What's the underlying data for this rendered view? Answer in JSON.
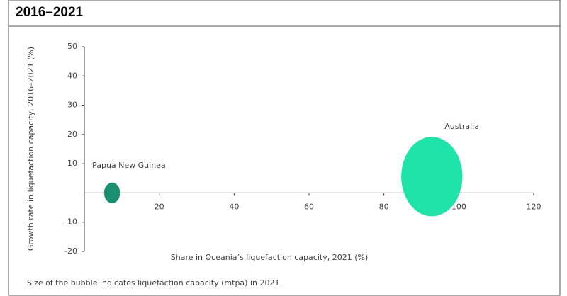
{
  "chart_data": {
    "type": "bubble",
    "title": "2016–2021",
    "x_label": "Share in Oceania’s liquefaction capacity, 2021 (%)",
    "y_label": "Growth rate in liquefaction capacity, 2016–2021 (%)",
    "note": "Size of the bubble indicates liquefaction capacity (mtpa) in 2021",
    "xlim": [
      0,
      120
    ],
    "xticks": [
      20,
      40,
      60,
      80,
      100,
      120
    ],
    "ylim": [
      -20,
      50
    ],
    "yticks": [
      -20,
      -10,
      10,
      20,
      30,
      40,
      50
    ],
    "series": [
      {
        "name": "Papua New Guinea",
        "color": "#1b8f70",
        "x": [
          7.4
        ],
        "values": [
          0
        ],
        "sizes": [
          6
        ]
      },
      {
        "name": "Australia",
        "color": "#1fe3a9",
        "x": [
          92.8
        ],
        "values": [
          5.6
        ],
        "sizes": [
          88
        ]
      }
    ]
  }
}
